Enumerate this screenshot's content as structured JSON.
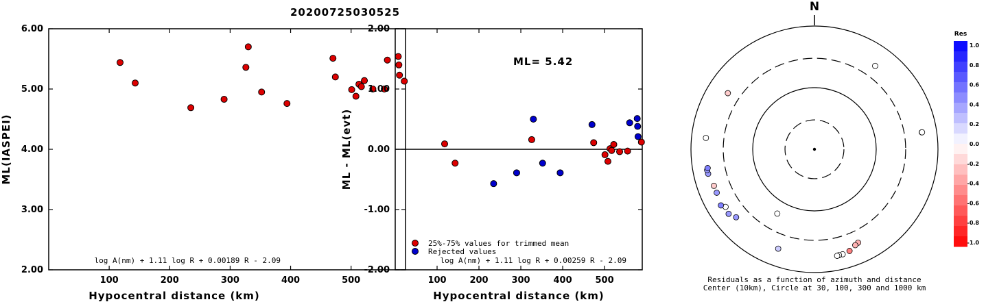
{
  "title": "20200725030525",
  "chart_data": [
    {
      "type": "scatter",
      "ylabel": "ML(IASPEI)",
      "xlabel": "Hypocentral distance (km)",
      "xlim": [
        0,
        590
      ],
      "ylim": [
        2.0,
        6.0
      ],
      "xticks": [
        "100",
        "200",
        "300",
        "400",
        "500"
      ],
      "yticks": [
        "2.00",
        "3.00",
        "4.00",
        "5.00",
        "6.00"
      ],
      "formula": "log A(nm) + 1.11 log R + 0.00189 R - 2.09",
      "colors": {
        "used": "#dd0000",
        "rejected": "#0000cc"
      },
      "points": [
        {
          "x": 118,
          "y": 5.44,
          "c": "used"
        },
        {
          "x": 143,
          "y": 5.1,
          "c": "used"
        },
        {
          "x": 235,
          "y": 4.69,
          "c": "used"
        },
        {
          "x": 290,
          "y": 4.83,
          "c": "used"
        },
        {
          "x": 326,
          "y": 5.36,
          "c": "used"
        },
        {
          "x": 330,
          "y": 5.7,
          "c": "used"
        },
        {
          "x": 352,
          "y": 4.95,
          "c": "used"
        },
        {
          "x": 394,
          "y": 4.76,
          "c": "used"
        },
        {
          "x": 470,
          "y": 5.51,
          "c": "used"
        },
        {
          "x": 474,
          "y": 5.2,
          "c": "used"
        },
        {
          "x": 501,
          "y": 4.99,
          "c": "used"
        },
        {
          "x": 508,
          "y": 4.88,
          "c": "used"
        },
        {
          "x": 513,
          "y": 5.08,
          "c": "used"
        },
        {
          "x": 517,
          "y": 5.04,
          "c": "used"
        },
        {
          "x": 522,
          "y": 5.14,
          "c": "used"
        },
        {
          "x": 536,
          "y": 5.0,
          "c": "used"
        },
        {
          "x": 555,
          "y": 5.0,
          "c": "used"
        },
        {
          "x": 560,
          "y": 5.48,
          "c": "used"
        },
        {
          "x": 578,
          "y": 5.54,
          "c": "used"
        },
        {
          "x": 579,
          "y": 5.4,
          "c": "used"
        },
        {
          "x": 580,
          "y": 5.23,
          "c": "used"
        },
        {
          "x": 588,
          "y": 5.13,
          "c": "used"
        }
      ]
    },
    {
      "type": "scatter",
      "ylabel": "ML - ML(evt)",
      "xlabel": "Hypocentral distance (km)",
      "xlim": [
        0,
        590
      ],
      "ylim": [
        -2.0,
        2.0
      ],
      "xticks": [
        "100",
        "200",
        "300",
        "400",
        "500"
      ],
      "yticks": [
        "-2.00",
        "-1.00",
        "0.00",
        "1.00",
        "2.00"
      ],
      "ml_label": "ML= 5.42",
      "legend": [
        "25%-75% values for trimmed mean",
        "Rejected values"
      ],
      "formula": "log A(nm) + 1.11 log R + 0.00259 R - 2.09",
      "colors": {
        "used": "#dd0000",
        "rejected": "#0000cc"
      },
      "points": [
        {
          "x": 118,
          "y": 0.09,
          "c": "used"
        },
        {
          "x": 143,
          "y": -0.23,
          "c": "used"
        },
        {
          "x": 235,
          "y": -0.57,
          "c": "rejected"
        },
        {
          "x": 290,
          "y": -0.39,
          "c": "rejected"
        },
        {
          "x": 326,
          "y": 0.16,
          "c": "used"
        },
        {
          "x": 330,
          "y": 0.5,
          "c": "rejected"
        },
        {
          "x": 352,
          "y": -0.23,
          "c": "rejected"
        },
        {
          "x": 394,
          "y": -0.39,
          "c": "rejected"
        },
        {
          "x": 470,
          "y": 0.41,
          "c": "rejected"
        },
        {
          "x": 474,
          "y": 0.11,
          "c": "used"
        },
        {
          "x": 501,
          "y": -0.09,
          "c": "used"
        },
        {
          "x": 508,
          "y": -0.2,
          "c": "used"
        },
        {
          "x": 513,
          "y": 0.01,
          "c": "used"
        },
        {
          "x": 517,
          "y": -0.02,
          "c": "used"
        },
        {
          "x": 522,
          "y": 0.08,
          "c": "used"
        },
        {
          "x": 536,
          "y": -0.04,
          "c": "used"
        },
        {
          "x": 555,
          "y": -0.03,
          "c": "used"
        },
        {
          "x": 560,
          "y": 0.44,
          "c": "rejected"
        },
        {
          "x": 578,
          "y": 0.51,
          "c": "rejected"
        },
        {
          "x": 579,
          "y": 0.38,
          "c": "rejected"
        },
        {
          "x": 580,
          "y": 0.21,
          "c": "rejected"
        },
        {
          "x": 588,
          "y": 0.12,
          "c": "used"
        }
      ]
    },
    {
      "type": "scatter",
      "subtype": "polar",
      "north_label": "N",
      "caption": [
        "Residuals as a function of azimuth and distance",
        "Center (10km), Circle at 30, 100, 300 and 1000 km"
      ],
      "rings_km": [
        30,
        100,
        300,
        1000
      ],
      "dashed_rings_km": [
        30,
        300
      ],
      "colorbar": {
        "title": "Res",
        "ticks": [
          "1.0",
          "0.8",
          "0.6",
          "0.4",
          "0.2",
          "0.0",
          "-0.2",
          "-0.4",
          "-0.6",
          "-0.8",
          "-1.0"
        ]
      },
      "points": [
        {
          "az": 36,
          "km": 470,
          "res": 0.0
        },
        {
          "az": 81,
          "km": 575,
          "res": 0.0
        },
        {
          "az": 81,
          "km": 580,
          "res": 0.0
        },
        {
          "az": 155,
          "km": 470,
          "res": -0.3
        },
        {
          "az": 157,
          "km": 490,
          "res": -0.3
        },
        {
          "az": 161,
          "km": 555,
          "res": -0.5
        },
        {
          "az": 165,
          "km": 580,
          "res": 0.0
        },
        {
          "az": 167,
          "km": 580,
          "res": 0.0
        },
        {
          "az": 168,
          "km": 585,
          "res": 0.0
        },
        {
          "az": 200,
          "km": 520,
          "res": 0.2
        },
        {
          "az": 210,
          "km": 160,
          "res": 0.0
        },
        {
          "az": 229,
          "km": 480,
          "res": 0.4
        },
        {
          "az": 233,
          "km": 550,
          "res": 0.4
        },
        {
          "az": 237,
          "km": 520,
          "res": 0.0
        },
        {
          "az": 239,
          "km": 585,
          "res": 0.5
        },
        {
          "az": 246,
          "km": 540,
          "res": 0.4
        },
        {
          "az": 250,
          "km": 540,
          "res": -0.2
        },
        {
          "az": 257,
          "km": 585,
          "res": 0.4
        },
        {
          "az": 259,
          "km": 590,
          "res": 0.4
        },
        {
          "az": 260,
          "km": 570,
          "res": 0.5
        },
        {
          "az": 276,
          "km": 585,
          "res": 0.0
        },
        {
          "az": 303,
          "km": 470,
          "res": -0.2
        }
      ]
    }
  ]
}
